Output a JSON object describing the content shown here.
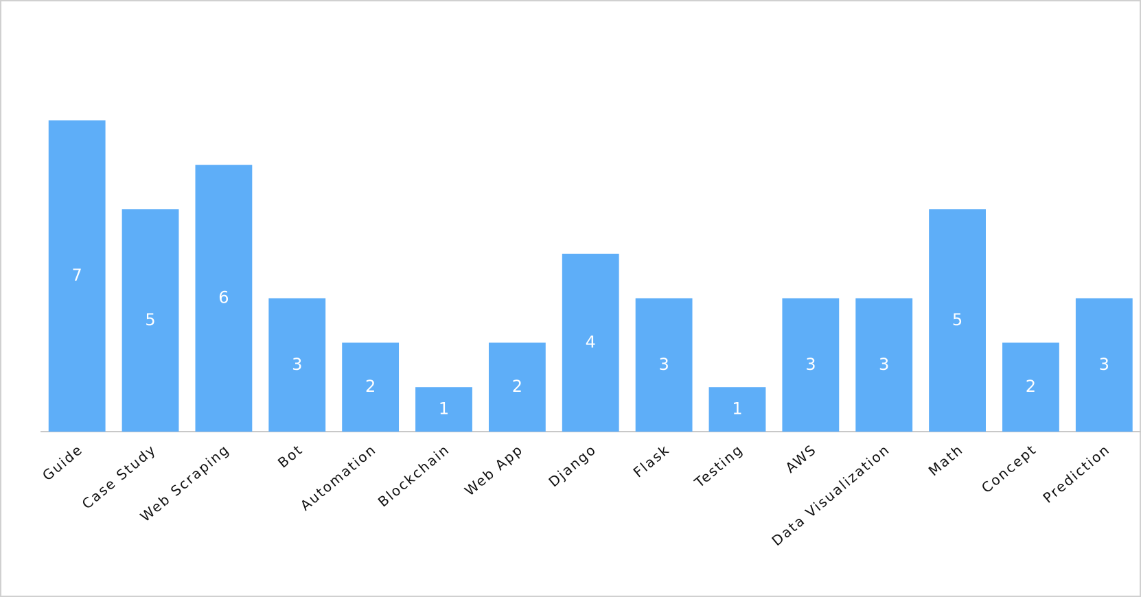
{
  "chart_data": {
    "type": "bar",
    "categories": [
      "Guide",
      "Case Study",
      "Web Scraping",
      "Bot",
      "Automation",
      "Blockchain",
      "Web App",
      "Django",
      "Flask",
      "Testing",
      "AWS",
      "Data Visualization",
      "Math",
      "Concept",
      "Prediction"
    ],
    "values": [
      7,
      5,
      6,
      3,
      2,
      1,
      2,
      4,
      3,
      1,
      3,
      3,
      5,
      2,
      3
    ],
    "color": "#5eaef8"
  }
}
